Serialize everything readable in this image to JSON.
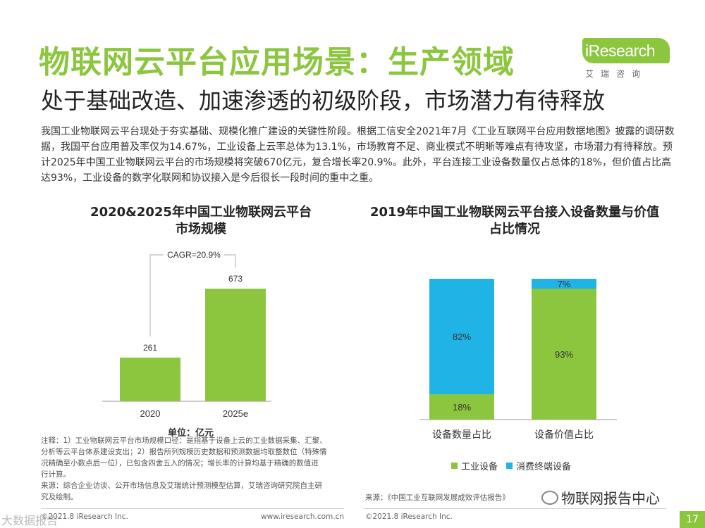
{
  "header": {
    "title": "物联网云平台应用场景：生产领域",
    "subtitle": "处于基础改造、加速渗透的初级阶段，市场潜力有待释放"
  },
  "logo": {
    "text": "iResearch",
    "subtext": "艾瑞咨询"
  },
  "intro": "我国工业物联网云平台现处于夯实基础、规模化推广建设的关键性阶段。根据工信安全2021年7月《工业互联网平台应用数据地图》披露的调研数据，我国平台应用普及率仅为14.67%，工业设备上云率总体为13.1%，市场教育不足、商业模式不明晰等难点有待攻坚，市场潜力有待释放。预计2025年中国工业物联网云平台的市场规模将突破670亿元，复合增长率20.9%。此外，平台连接工业设备数量仅占总体的18%，但价值占比高达93%，工业设备的数字化联网和协议接入是今后很长一段时间的重中之重。",
  "colors": {
    "green": "#8cc63f",
    "blue": "#1fb3e6",
    "text": "#333333"
  },
  "chart_data": [
    {
      "type": "bar",
      "title": "2020&2025年中国工业物联网云平台市场规模",
      "categories": [
        "2020",
        "2025e"
      ],
      "values": [
        261,
        673
      ],
      "value_labels": [
        "261",
        "673"
      ],
      "annotation": "CAGR=20.9%",
      "unit": "单位：亿元",
      "color": "#8cc63f",
      "ylim": [
        0,
        673
      ]
    },
    {
      "type": "bar",
      "stacked": true,
      "percent": true,
      "title": "2019年中国工业物联网云平台接入设备数量与价值占比情况",
      "categories": [
        "设备数量占比",
        "设备价值占比"
      ],
      "series": [
        {
          "name": "工业设备",
          "color": "#8cc63f",
          "values": [
            18,
            93
          ],
          "labels": [
            "18%",
            "93%"
          ]
        },
        {
          "name": "消费终端设备",
          "color": "#1fb3e6",
          "values": [
            82,
            7
          ],
          "labels": [
            "82%",
            "7%"
          ]
        }
      ],
      "ylim": [
        0,
        100
      ],
      "legend": "bottom"
    }
  ],
  "notes": {
    "lines": [
      "注释：1）工业物联网云平台市场规模口径：是指基于设备上云的工业数据采集、汇聚、",
      "分析等云平台体系建设支出；2）报告所列规模历史数据和预测数据均取整数位（特殊情",
      "况精确至小数点后一位），已包含四舍五入的情况；增长率的计算均基于精确的数值进",
      "行计算。",
      "来源：综合企业访谈、公开市场信息及艾瑞统计预测模型估算，艾瑞咨询研究院自主研",
      "究及绘制。"
    ]
  },
  "source_right": "来源：《中国工业互联网发展成效评估报告》",
  "footer": {
    "copyright_left": "©2021.8 iResearch Inc.",
    "website": "www.iresearch.com.cn",
    "copyright_right": "©2021.8 iResearch Inc.",
    "page": "17"
  },
  "watermark": {
    "text": "物联网报告中心",
    "left": "大数据报告"
  }
}
